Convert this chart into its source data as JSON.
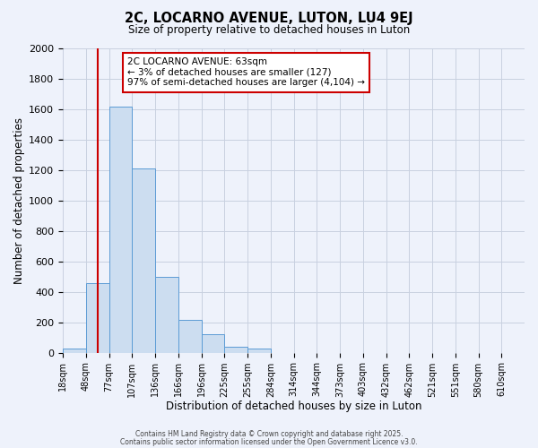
{
  "title": "2C, LOCARNO AVENUE, LUTON, LU4 9EJ",
  "subtitle": "Size of property relative to detached houses in Luton",
  "xlabel": "Distribution of detached houses by size in Luton",
  "ylabel": "Number of detached properties",
  "bar_values": [
    30,
    460,
    1620,
    1210,
    500,
    215,
    120,
    40,
    25,
    0,
    0,
    0,
    0,
    0,
    0,
    0,
    0,
    0,
    0
  ],
  "bin_labels": [
    "18sqm",
    "48sqm",
    "77sqm",
    "107sqm",
    "136sqm",
    "166sqm",
    "196sqm",
    "225sqm",
    "255sqm",
    "284sqm",
    "314sqm",
    "344sqm",
    "373sqm",
    "403sqm",
    "432sqm",
    "462sqm",
    "521sqm",
    "551sqm",
    "580sqm",
    "610sqm"
  ],
  "bar_color": "#ccddf0",
  "bar_edge_color": "#5b9bd5",
  "background_color": "#eef2fb",
  "grid_color": "#c8d0e0",
  "vline_color": "#cc0000",
  "vline_position": 1.5,
  "annotation_title": "2C LOCARNO AVENUE: 63sqm",
  "annotation_line1": "← 3% of detached houses are smaller (127)",
  "annotation_line2": "97% of semi-detached houses are larger (4,104) →",
  "annotation_box_color": "#ffffff",
  "annotation_box_edge": "#cc0000",
  "ylim": [
    0,
    2000
  ],
  "yticks": [
    0,
    200,
    400,
    600,
    800,
    1000,
    1200,
    1400,
    1600,
    1800,
    2000
  ],
  "footer1": "Contains HM Land Registry data © Crown copyright and database right 2025.",
  "footer2": "Contains public sector information licensed under the Open Government Licence v3.0."
}
